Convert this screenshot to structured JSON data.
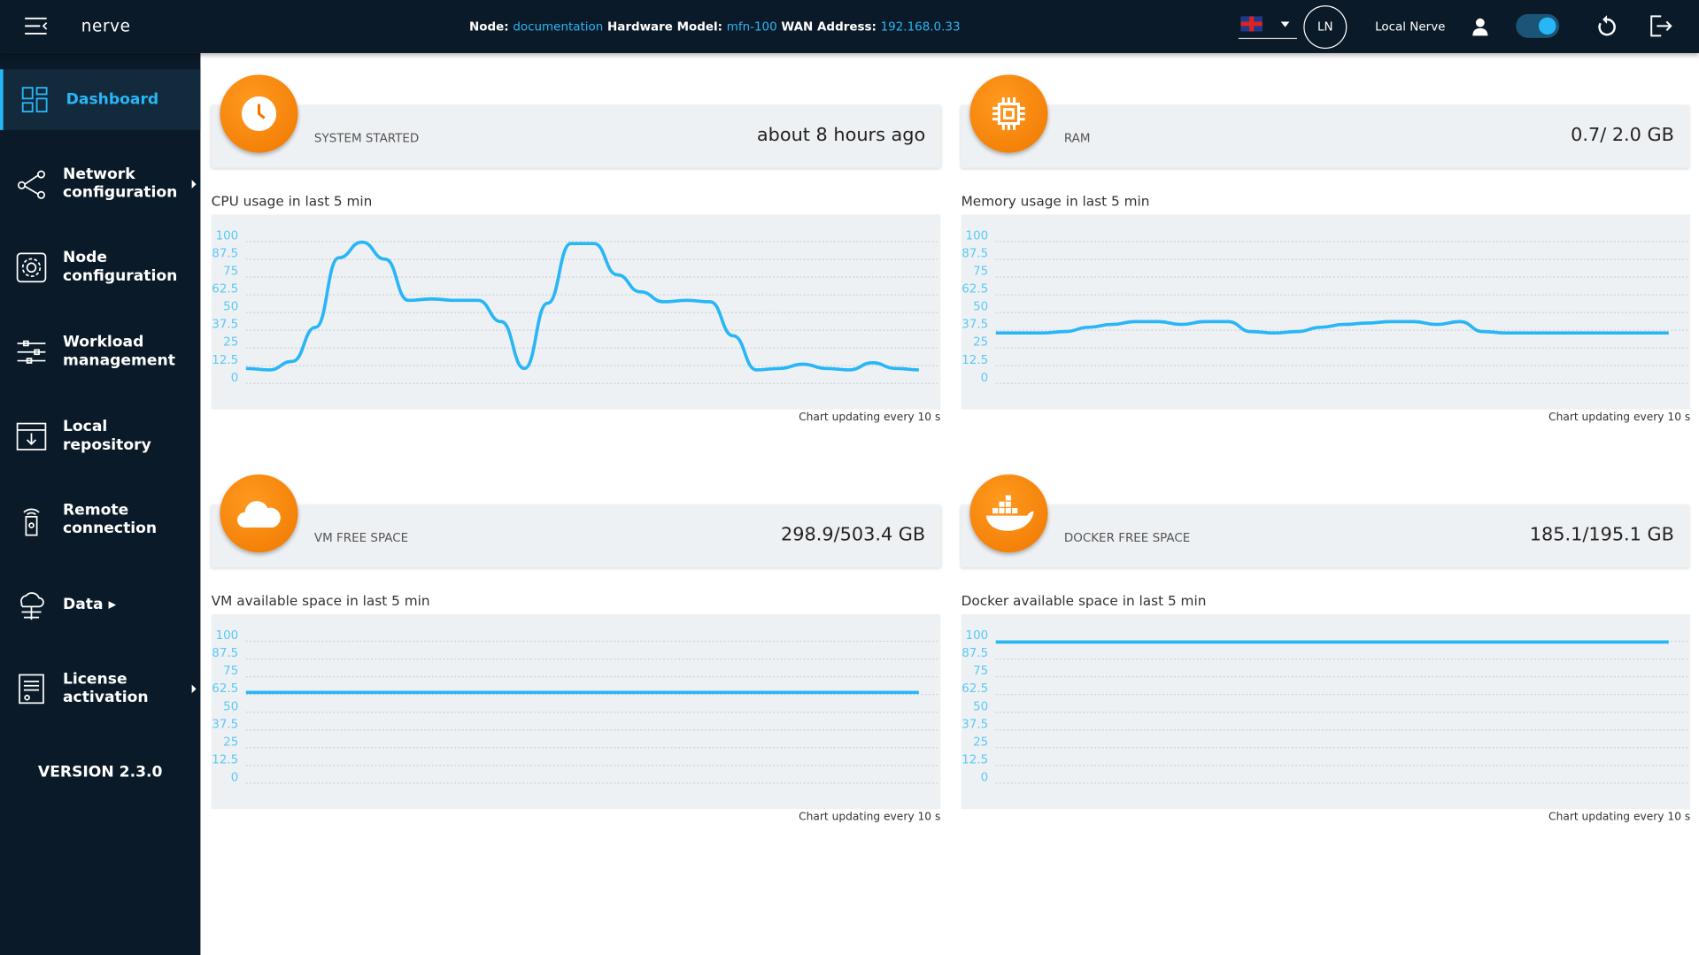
{
  "header": {
    "logo": "nerve",
    "node_label": "Node:",
    "node": "documentation",
    "hw_label": "Hardware Model:",
    "hw": "mfn-100",
    "wan_label": "WAN Address:",
    "wan": "192.168.0.33",
    "language": "en-GB",
    "initials": "LN",
    "user_name": "Local Nerve",
    "toggle_on": true
  },
  "sidebar": {
    "items": [
      {
        "label": "Dashboard",
        "icon": "dashboard-icon",
        "active": true
      },
      {
        "label": "Network configuration",
        "icon": "network-icon",
        "submenu": true
      },
      {
        "label": "Node configuration",
        "icon": "gear-icon"
      },
      {
        "label": "Workload management",
        "icon": "sliders-icon"
      },
      {
        "label": "Local repository",
        "icon": "repository-icon"
      },
      {
        "label": "Remote connection",
        "icon": "remote-icon"
      },
      {
        "label": "Data ▸",
        "icon": "cloud-data-icon"
      },
      {
        "label": "License activation",
        "icon": "license-icon",
        "submenu": true
      }
    ],
    "version": "VERSION 2.3.0"
  },
  "cards": [
    {
      "label": "SYSTEM STARTED",
      "value": "about 8 hours ago",
      "icon": "clock-icon"
    },
    {
      "label": "RAM",
      "value": "0.7/ 2.0 GB",
      "icon": "chip-icon"
    },
    {
      "label": "VM FREE SPACE",
      "value": "298.9/503.4 GB",
      "icon": "cloud-icon"
    },
    {
      "label": "DOCKER FREE SPACE",
      "value": "185.1/195.1 GB",
      "icon": "docker-icon"
    }
  ],
  "colors": {
    "accent": "#29b6f6",
    "orange": "#f58200",
    "sidebar": "#0b1a28"
  },
  "chart_data": [
    {
      "type": "line",
      "title": "CPU usage in last 5 min",
      "ylim": [
        0,
        100
      ],
      "yticks": [
        "100",
        "87.5",
        "75",
        "62.5",
        "50",
        "37.5",
        "25",
        "12.5",
        "0"
      ],
      "grid": true,
      "note": "Chart updating every 10 s",
      "values": [
        6,
        5,
        11,
        35,
        84,
        95,
        83,
        54,
        55,
        54,
        54,
        39,
        6,
        52,
        94,
        94,
        72,
        60,
        53,
        54,
        53,
        29,
        5,
        6,
        9,
        6,
        5,
        10,
        6,
        5
      ]
    },
    {
      "type": "line",
      "title": "Memory usage in last 5 min",
      "ylim": [
        0,
        100
      ],
      "yticks": [
        "100",
        "87.5",
        "75",
        "62.5",
        "50",
        "37.5",
        "25",
        "12.5",
        "0"
      ],
      "grid": true,
      "note": "Chart updating every 10 s",
      "values": [
        31,
        31,
        31,
        32,
        35,
        37,
        39,
        39,
        37,
        39,
        39,
        32,
        31,
        32,
        35,
        37,
        38,
        39,
        39,
        37,
        39,
        32,
        31,
        31,
        31,
        31,
        31,
        31,
        31,
        31
      ]
    },
    {
      "type": "line",
      "title": "VM available space in last 5 min",
      "ylim": [
        0,
        100
      ],
      "yticks": [
        "100",
        "87.5",
        "75",
        "62.5",
        "50",
        "37.5",
        "25",
        "12.5",
        "0"
      ],
      "grid": true,
      "note": "Chart updating every 10 s",
      "values": [
        59.4,
        59.4,
        59.4,
        59.4,
        59.4,
        59.4,
        59.4,
        59.4,
        59.4,
        59.4,
        59.4,
        59.4,
        59.4,
        59.4,
        59.4,
        59.4,
        59.4,
        59.4,
        59.4,
        59.4,
        59.4,
        59.4,
        59.4,
        59.4,
        59.4,
        59.4,
        59.4,
        59.4,
        59.4,
        59.4
      ]
    },
    {
      "type": "line",
      "title": "Docker available space in last 5 min",
      "ylim": [
        0,
        100
      ],
      "yticks": [
        "100",
        "87.5",
        "75",
        "62.5",
        "50",
        "37.5",
        "25",
        "12.5",
        "0"
      ],
      "grid": true,
      "note": "Chart updating every 10 s",
      "values": [
        94.9,
        94.9,
        94.9,
        94.9,
        94.9,
        94.9,
        94.9,
        94.9,
        94.9,
        94.9,
        94.9,
        94.9,
        94.9,
        94.9,
        94.9,
        94.9,
        94.9,
        94.9,
        94.9,
        94.9,
        94.9,
        94.9,
        94.9,
        94.9,
        94.9,
        94.9,
        94.9,
        94.9,
        94.9,
        94.9
      ]
    }
  ]
}
